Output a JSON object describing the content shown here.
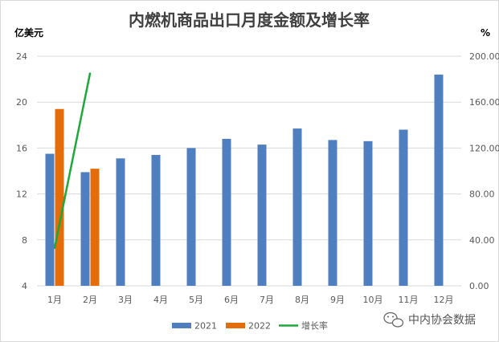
{
  "chart_data": {
    "type": "bar",
    "title": "内燃机商品出口月度金额及增长率",
    "ylabel": "亿美元",
    "y2label": "%",
    "categories": [
      "1月",
      "2月",
      "3月",
      "4月",
      "5月",
      "6月",
      "7月",
      "8月",
      "9月",
      "10月",
      "11月",
      "12月"
    ],
    "ylim": [
      4,
      24
    ],
    "yticks": [
      "4",
      "8",
      "12",
      "16",
      "20",
      "24"
    ],
    "y2lim": [
      0,
      200
    ],
    "y2ticks": [
      "0.00",
      "40.00",
      "80.00",
      "120.00",
      "160.00",
      "200.00"
    ],
    "grid": true,
    "legend_position": "bottom",
    "series": [
      {
        "name": "2021",
        "type": "bar",
        "axis": "left",
        "color": "#4f7fbf",
        "values": [
          15.5,
          13.9,
          15.1,
          15.4,
          16.0,
          16.8,
          16.3,
          17.7,
          16.7,
          16.6,
          17.6,
          22.4
        ]
      },
      {
        "name": "2022",
        "type": "bar",
        "axis": "left",
        "color": "#e46c0a",
        "values": [
          19.4,
          14.2,
          null,
          null,
          null,
          null,
          null,
          null,
          null,
          null,
          null,
          null
        ]
      },
      {
        "name": "增长率",
        "type": "line",
        "axis": "right",
        "color": "#1fa83a",
        "values": [
          33,
          185,
          null,
          null,
          null,
          null,
          null,
          null,
          null,
          null,
          null,
          null
        ]
      }
    ]
  },
  "watermark": {
    "text": "中内协会数据",
    "icon": "wechat-icon"
  }
}
